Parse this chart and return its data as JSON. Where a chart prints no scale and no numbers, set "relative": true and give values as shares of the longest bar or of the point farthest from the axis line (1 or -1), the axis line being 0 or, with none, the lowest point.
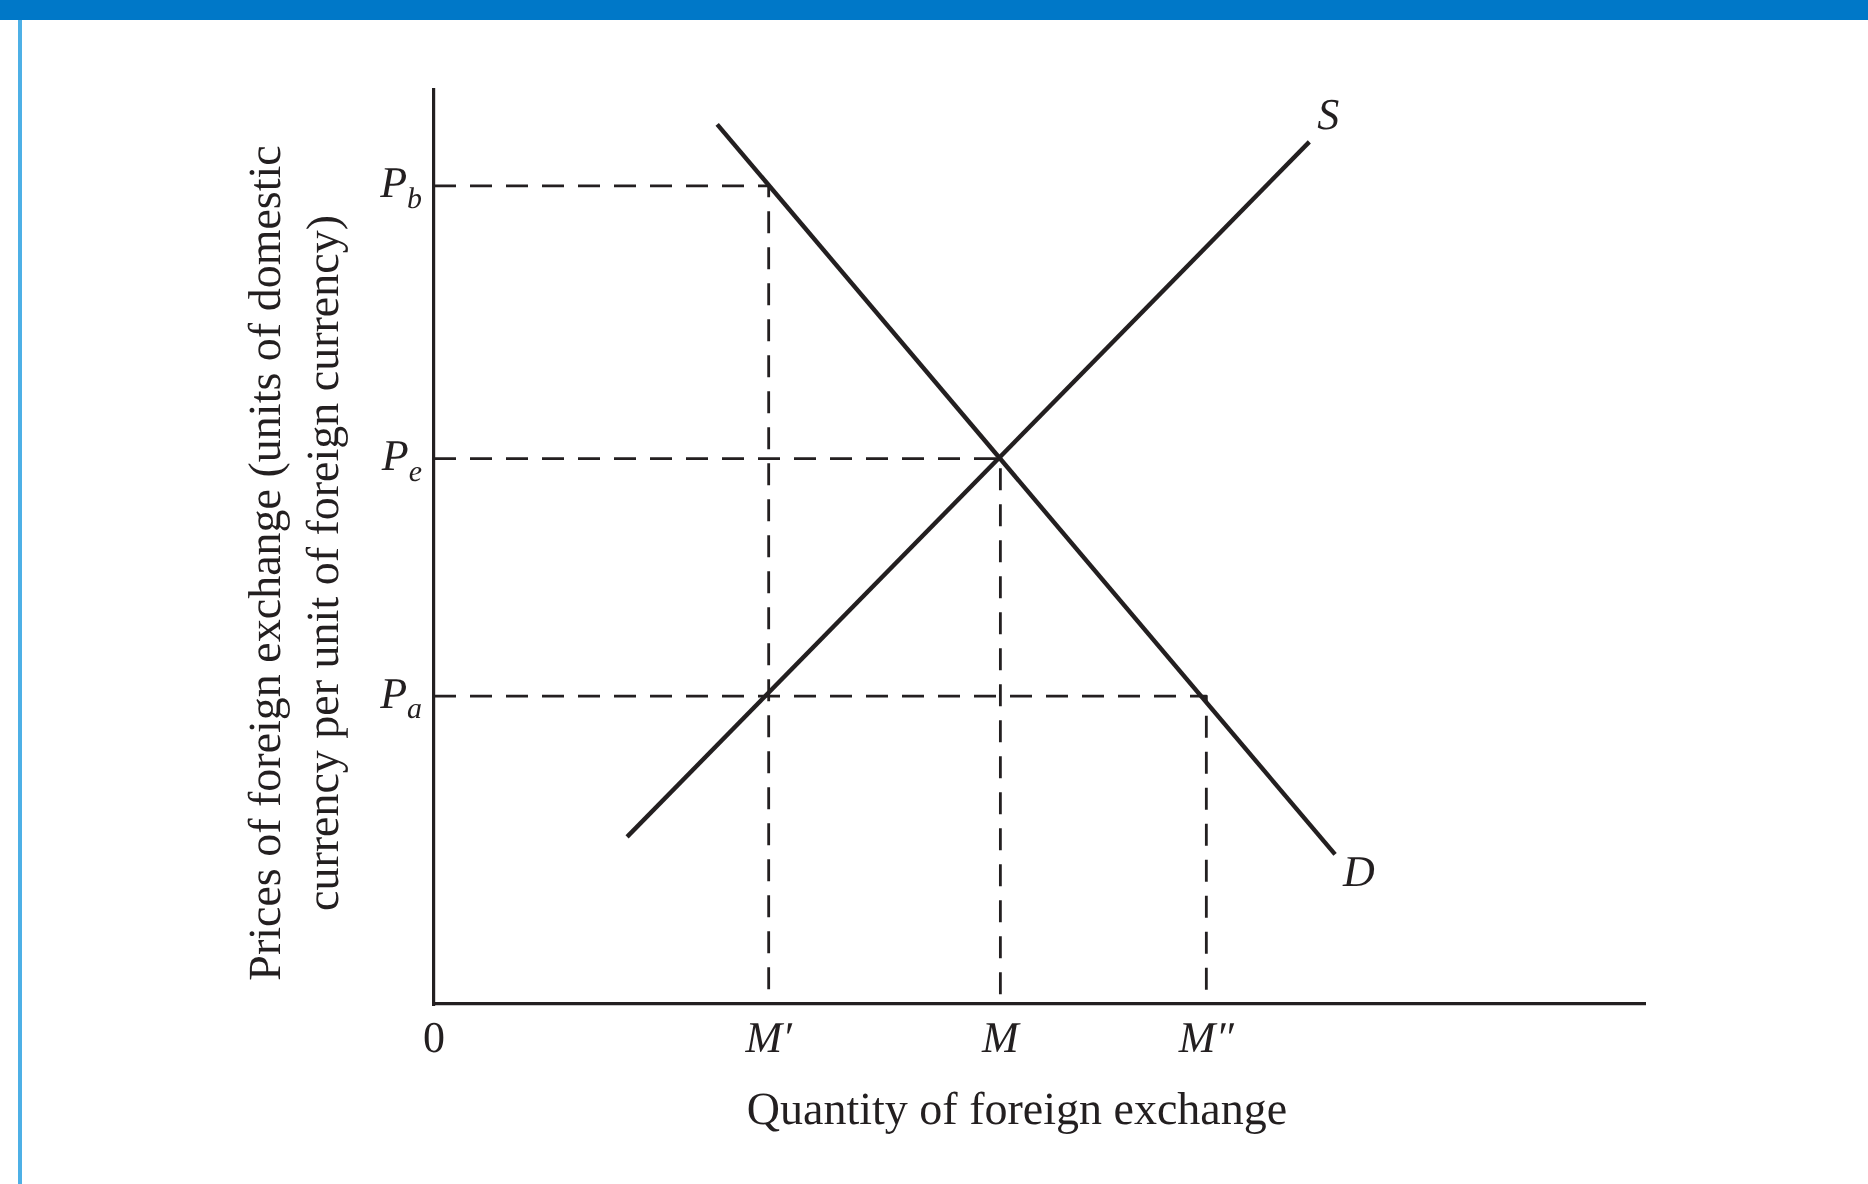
{
  "chart_data": {
    "type": "line",
    "relative": true,
    "xlabel": "Quantity of foreign exchange",
    "ylabel": "Prices of foreign exchange (units of domestic currency per unit of foreign currency)",
    "categories": [
      "0",
      null,
      null,
      null,
      null,
      null,
      null,
      null,
      null,
      null,
      null,
      null,
      null,
      null,
      null,
      null,
      null,
      null,
      null,
      null,
      null,
      null,
      null,
      null,
      null,
      null,
      "M′",
      null,
      null,
      null,
      null,
      null,
      null,
      null,
      null,
      null,
      null,
      null,
      null,
      null,
      null,
      null,
      null,
      null,
      "M",
      null,
      null,
      null,
      null,
      null,
      null,
      null,
      null,
      null,
      null,
      null,
      null,
      null,
      null,
      null,
      "M″",
      null,
      null,
      null,
      null,
      null,
      null,
      null,
      null,
      null,
      null,
      null,
      null,
      null,
      null,
      null,
      null,
      null,
      null,
      null,
      null,
      null,
      null,
      null,
      null,
      null,
      null,
      null,
      null,
      null,
      null,
      null,
      null,
      null,
      null
    ],
    "series": [
      {
        "name": "S",
        "color": "#231f20",
        "values": [
          null,
          null,
          null,
          null,
          null,
          null,
          null,
          null,
          null,
          null,
          null,
          null,
          null,
          null,
          null,
          0.19,
          null,
          null,
          null,
          null,
          null,
          null,
          null,
          null,
          null,
          null,
          null,
          null,
          null,
          null,
          null,
          null,
          null,
          null,
          null,
          null,
          null,
          null,
          null,
          null,
          null,
          null,
          null,
          null,
          null,
          null,
          null,
          null,
          null,
          null,
          null,
          null,
          null,
          null,
          null,
          null,
          null,
          null,
          null,
          null,
          null,
          null,
          null,
          null,
          null,
          null,
          null,
          null,
          0.98,
          null,
          null,
          null,
          null,
          null,
          null,
          null,
          null,
          null,
          null,
          null,
          null,
          null,
          null,
          null,
          null,
          null,
          null,
          null,
          null,
          null,
          null,
          null,
          null,
          null,
          null
        ]
      },
      {
        "name": "D",
        "color": "#231f20",
        "values": [
          null,
          null,
          null,
          null,
          null,
          null,
          null,
          null,
          null,
          null,
          null,
          null,
          null,
          null,
          null,
          null,
          null,
          null,
          null,
          null,
          null,
          null,
          1,
          null,
          null,
          null,
          null,
          null,
          null,
          null,
          null,
          null,
          null,
          null,
          null,
          null,
          null,
          null,
          null,
          null,
          null,
          null,
          null,
          null,
          null,
          null,
          null,
          null,
          null,
          null,
          null,
          null,
          null,
          null,
          null,
          null,
          null,
          null,
          null,
          null,
          null,
          null,
          null,
          null,
          null,
          null,
          null,
          null,
          null,
          null,
          0.17,
          null,
          null,
          null,
          null,
          null,
          null,
          null,
          null,
          null,
          null,
          null,
          null,
          null,
          null,
          null,
          null,
          null,
          null,
          null,
          null,
          null,
          null,
          null,
          null
        ]
      },
      {
        "name": "P$_{b}$",
        "color": "#231f20",
        "line_style": "dashed",
        "x": [
          "0",
          "M′",
          "M′"
        ],
        "values": [
          0.93,
          0.93,
          0
        ]
      },
      {
        "name": "P$_{e}$",
        "color": "#231f20",
        "line_style": "dashed",
        "x": [
          "0",
          "M",
          "M"
        ],
        "values": [
          0.62,
          0.62,
          0
        ]
      },
      {
        "name": "P$_{a}$",
        "color": "#231f20",
        "line_style": "dashed",
        "x": [
          "0",
          "M″",
          "M″"
        ],
        "values": [
          0.35,
          0.35,
          0
        ]
      }
    ],
    "legend": false
  }
}
